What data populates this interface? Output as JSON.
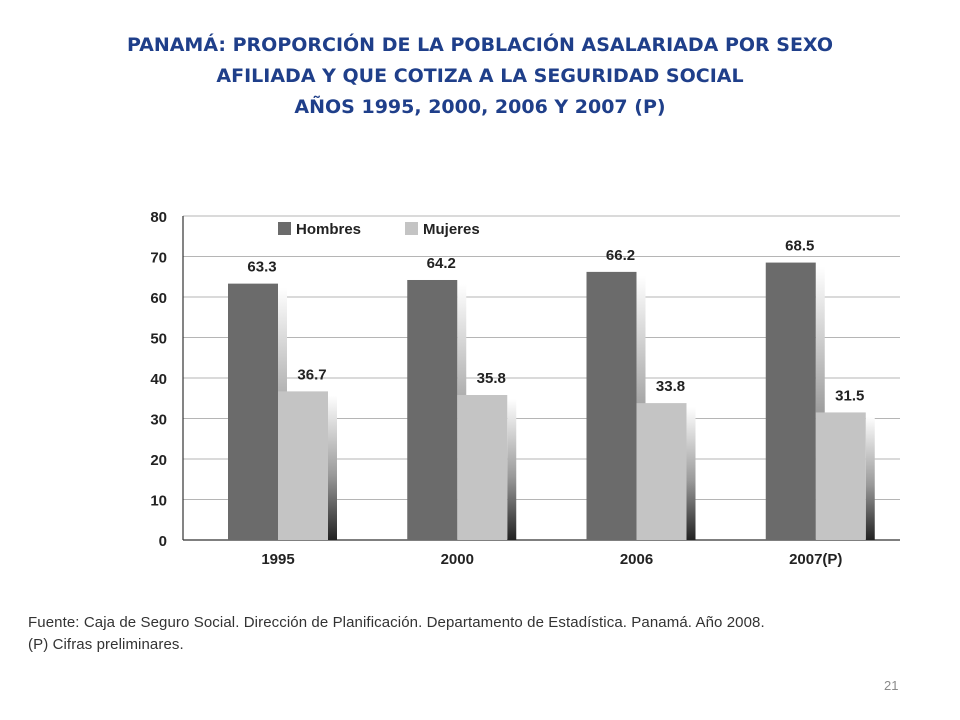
{
  "slide": {
    "title_lines": [
      "PANAMÁ: PROPORCIÓN DE LA POBLACIÓN ASALARIADA POR SEXO",
      "AFILIADA Y QUE COTIZA A LA SEGURIDAD SOCIAL",
      "AÑOS 1995, 2000, 2006 Y 2007 (P)"
    ],
    "source_lines": [
      "Fuente: Caja de Seguro Social. Dirección de Planificación. Departamento de Estadística. Panamá. Año 2008.",
      "(P) Cifras preliminares."
    ],
    "page_number": "21"
  },
  "chart_data": {
    "type": "bar",
    "categories": [
      "1995",
      "2000",
      "2006",
      "2007(P)"
    ],
    "series": [
      {
        "name": "Hombres",
        "values": [
          63.3,
          64.2,
          66.2,
          68.5
        ],
        "color": "#6b6b6b"
      },
      {
        "name": "Mujeres",
        "values": [
          36.7,
          35.8,
          33.8,
          31.5
        ],
        "color": "#c4c4c4"
      }
    ],
    "ylim": [
      0,
      80
    ],
    "yticks": [
      0,
      10,
      20,
      30,
      40,
      50,
      60,
      70,
      80
    ],
    "grid": true,
    "legend_position": "top-left"
  }
}
